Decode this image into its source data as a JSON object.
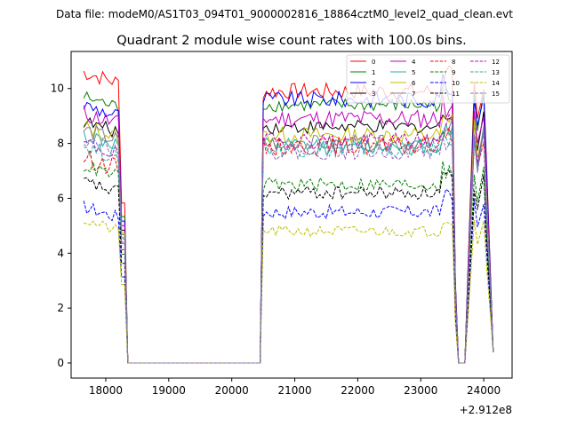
{
  "figure": {
    "suptitle": "Data file: modeM0/AS1T03_094T01_9000002816_18864cztM0_level2_quad_clean.evt"
  },
  "chart_data": {
    "type": "line",
    "title": "Quadrant 2 module wise count rates with 100.0s bins.",
    "xlabel": "",
    "ylabel": "",
    "x_offset_label": "+2.912e8",
    "xlim": [
      17450,
      24450
    ],
    "ylim": [
      -0.55,
      11.35
    ],
    "xticks": [
      18000,
      19000,
      20000,
      21000,
      22000,
      23000,
      24000
    ],
    "xtick_labels": [
      "18000",
      "19000",
      "20000",
      "21000",
      "22000",
      "23000",
      "24000"
    ],
    "yticks": [
      0,
      2,
      4,
      6,
      8,
      10
    ],
    "ytick_labels": [
      "0",
      "2",
      "4",
      "6",
      "8",
      "10"
    ],
    "grid": false,
    "legend_position": "top-right",
    "legend_columns": 4,
    "segments": [
      {
        "x_start": 17650,
        "x_end": 18350
      },
      {
        "x_start": 20450,
        "x_end": 23550
      },
      {
        "x_start": 23650,
        "x_end": 24150
      }
    ],
    "series": [
      {
        "name": "0",
        "color": "#ff0000",
        "dash": "solid",
        "level_a": 10.6,
        "level_b": 9.9,
        "noise": 0.3
      },
      {
        "name": "1",
        "color": "#008000",
        "dash": "solid",
        "level_a": 9.7,
        "level_b": 9.4,
        "noise": 0.25
      },
      {
        "name": "2",
        "color": "#0000ff",
        "dash": "solid",
        "level_a": 9.4,
        "level_b": 9.6,
        "noise": 0.3
      },
      {
        "name": "3",
        "color": "#000000",
        "dash": "solid",
        "level_a": 8.8,
        "level_b": 8.6,
        "noise": 0.25
      },
      {
        "name": "4",
        "color": "#bf00bf",
        "dash": "solid",
        "level_a": 9.1,
        "level_b": 8.9,
        "noise": 0.35
      },
      {
        "name": "5",
        "color": "#20b2aa",
        "dash": "solid",
        "level_a": 8.3,
        "level_b": 7.9,
        "noise": 0.3
      },
      {
        "name": "6",
        "color": "#bfbf00",
        "dash": "solid",
        "level_a": 8.6,
        "level_b": 8.3,
        "noise": 0.3
      },
      {
        "name": "7",
        "color": "#808080",
        "dash": "solid",
        "level_a": 8.5,
        "level_b": 8.0,
        "noise": 0.3
      },
      {
        "name": "8",
        "color": "#ff0000",
        "dash": "dashed",
        "level_a": 7.5,
        "level_b": 7.9,
        "noise": 0.35
      },
      {
        "name": "9",
        "color": "#008000",
        "dash": "dashed",
        "level_a": 7.2,
        "level_b": 6.5,
        "noise": 0.25
      },
      {
        "name": "10",
        "color": "#0000ff",
        "dash": "dashed",
        "level_a": 5.7,
        "level_b": 5.5,
        "noise": 0.25
      },
      {
        "name": "11",
        "color": "#000000",
        "dash": "dashed",
        "level_a": 6.6,
        "level_b": 6.2,
        "noise": 0.25
      },
      {
        "name": "12",
        "color": "#bf00bf",
        "dash": "dashed",
        "level_a": 8.0,
        "level_b": 8.1,
        "noise": 0.3
      },
      {
        "name": "13",
        "color": "#20b2aa",
        "dash": "dashed",
        "level_a": 7.9,
        "level_b": 7.8,
        "noise": 0.3
      },
      {
        "name": "14",
        "color": "#bfbf00",
        "dash": "dashed",
        "level_a": 5.2,
        "level_b": 4.8,
        "noise": 0.2
      },
      {
        "name": "15",
        "color": "#9467bd",
        "dash": "dashed",
        "level_a": 8.2,
        "level_b": 7.7,
        "noise": 0.3
      }
    ]
  }
}
